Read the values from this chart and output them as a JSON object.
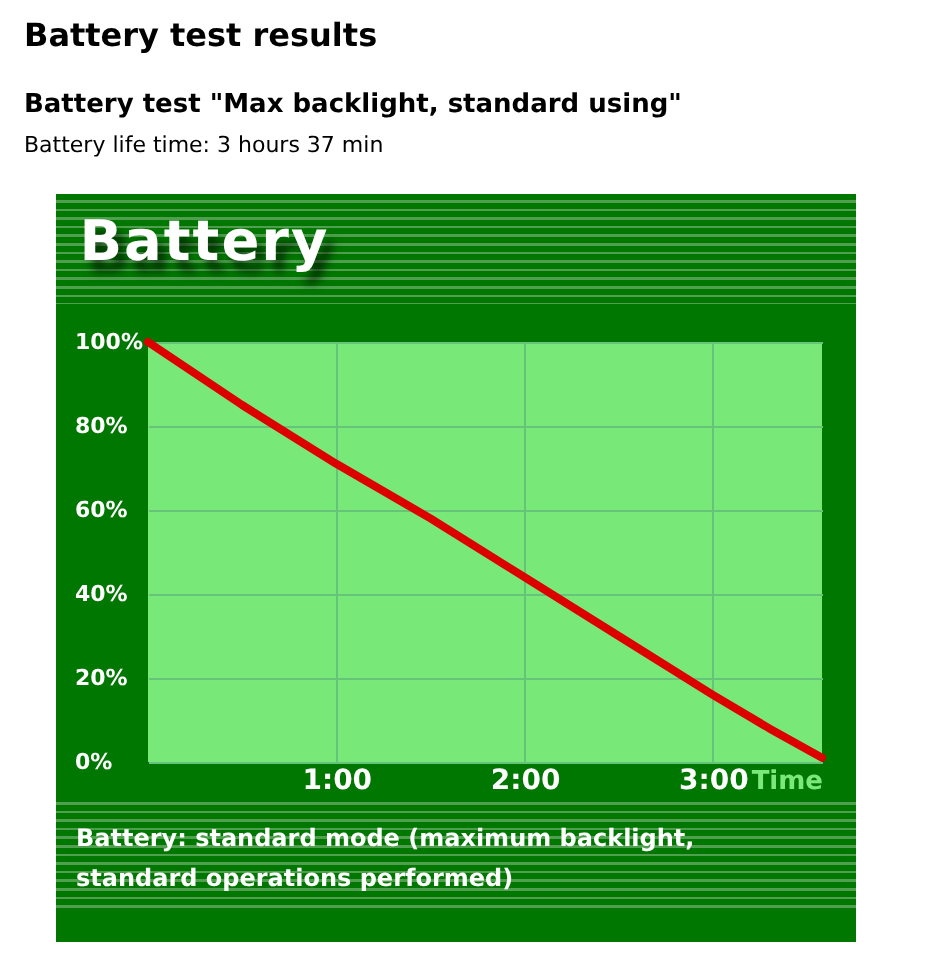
{
  "chart_data": {
    "type": "line",
    "title": "Battery test results",
    "subtitle": "Battery test \"Max backlight, standard using\"",
    "xlabel": "Time",
    "annotations": [
      "Battery life time: 3 hours 37 min",
      "Battery",
      "Battery: standard mode (maximum backlight, standard operations performed)"
    ],
    "x": [
      0,
      0.5,
      1,
      1.5,
      2,
      2.5,
      3,
      3.3,
      3.58
    ],
    "series": [
      {
        "color": "#dd0000",
        "values": [
          100,
          85,
          71,
          58,
          44,
          30,
          16,
          8,
          1
        ]
      }
    ],
    "xlim": [
      0,
      3.58
    ],
    "xticks": [
      {
        "value": 1,
        "label": "1:00"
      },
      {
        "value": 2,
        "label": "2:00"
      },
      {
        "value": 3,
        "label": "3:00"
      }
    ],
    "ylim": [
      0,
      100
    ],
    "yticks": [
      {
        "value": 0,
        "label": "0%"
      },
      {
        "value": 20,
        "label": "20%"
      },
      {
        "value": 40,
        "label": "40%"
      },
      {
        "value": 60,
        "label": "60%"
      },
      {
        "value": 80,
        "label": "80%"
      },
      {
        "value": 100,
        "label": "100%"
      }
    ],
    "grid": true
  }
}
